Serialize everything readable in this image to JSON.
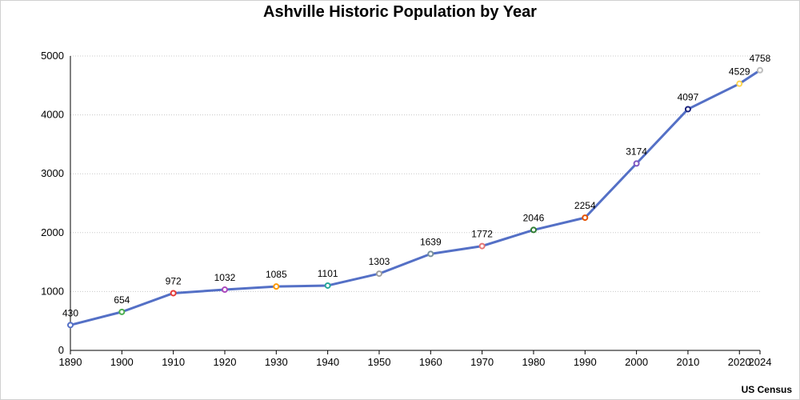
{
  "chart_data": {
    "type": "line",
    "title": "Ashville Historic Population by Year",
    "xlabel": "",
    "ylabel": "",
    "source": "US Census",
    "x": [
      1890,
      1900,
      1910,
      1920,
      1930,
      1940,
      1950,
      1960,
      1970,
      1980,
      1990,
      2000,
      2010,
      2020,
      2024
    ],
    "series": [
      {
        "values": [
          430,
          654,
          972,
          1032,
          1085,
          1101,
          1303,
          1639,
          1772,
          2046,
          2254,
          3174,
          4097,
          4529,
          4758
        ],
        "line_color": "#5470c6",
        "point_colors": [
          "#5470c6",
          "#4caf50",
          "#e53935",
          "#ab47bc",
          "#ff9800",
          "#26a69a",
          "#9e9e9e",
          "#78909c",
          "#e57373",
          "#2e7d32",
          "#e65100",
          "#7e57c2",
          "#1a237e",
          "#ffd54f",
          "#bdbdbd"
        ]
      }
    ],
    "xticks": [
      "1890",
      "1900",
      "1910",
      "1920",
      "1930",
      "1940",
      "1950",
      "1960",
      "1970",
      "1980",
      "1990",
      "2000",
      "2010",
      "2020",
      "2024"
    ],
    "yticks": [
      "0",
      "1000",
      "2000",
      "3000",
      "4000",
      "5000"
    ],
    "xlim": [
      1890,
      2024
    ],
    "ylim": [
      0,
      5000
    ],
    "grid": true,
    "grid_style": "dotted-horizontal"
  }
}
